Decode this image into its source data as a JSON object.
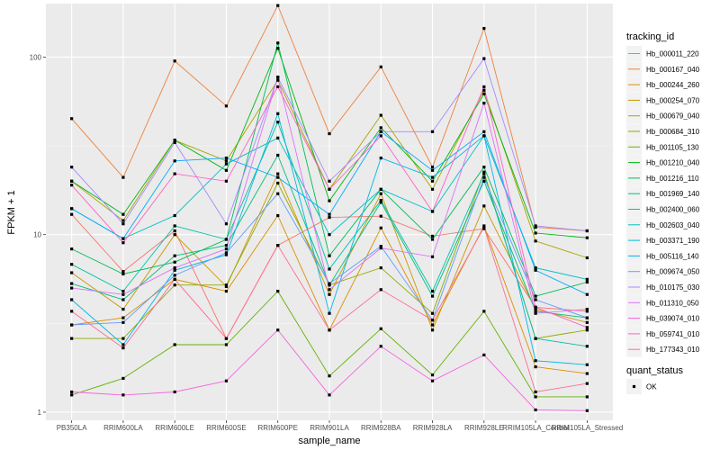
{
  "chart_data": {
    "type": "line",
    "xlabel": "sample_name",
    "ylabel": "FPKM + 1",
    "y_scale": "log10",
    "ylim": [
      0.9,
      200
    ],
    "y_ticks": [
      1,
      10,
      100
    ],
    "y_tick_labels": [
      "1",
      "10",
      "100"
    ],
    "grid": true,
    "legend_position": "right",
    "categories": [
      "PB350LA",
      "RRIM600LA",
      "RRIM600LE",
      "RRIM600SE",
      "RRIM600PE",
      "RRIM901LA",
      "RRIM928BA",
      "RRIM928LA",
      "RRIM928LE",
      "RRIM105LA_Control",
      "RRIM105LA_Stressed"
    ],
    "series": [
      {
        "name": "Hb_000011_220",
        "color": "#F8766D",
        "values": [
          13,
          6.2,
          10.5,
          2.6,
          8.7,
          12.5,
          12.7,
          9.8,
          10.8,
          3.9,
          3.7
        ]
      },
      {
        "name": "Hb_000167_040",
        "color": "#EC823C",
        "values": [
          45,
          21,
          95,
          53,
          195,
          37,
          88,
          24,
          145,
          11,
          10.5
        ]
      },
      {
        "name": "Hb_000244_260",
        "color": "#DB8E00",
        "values": [
          3.1,
          3.4,
          5.6,
          4.8,
          12.8,
          2.9,
          10.9,
          3.1,
          11.2,
          1.8,
          1.65
        ]
      },
      {
        "name": "Hb_000254_070",
        "color": "#C79800",
        "values": [
          6.1,
          3.8,
          10,
          5.1,
          22,
          4.6,
          17,
          2.9,
          14.5,
          3.8,
          3.2
        ]
      },
      {
        "name": "Hb_000679_040",
        "color": "#AEA200",
        "values": [
          20,
          12,
          34,
          26,
          74,
          18,
          47,
          18,
          65,
          9.2,
          7.4
        ]
      },
      {
        "name": "Hb_000684_310",
        "color": "#8FAA00",
        "values": [
          2.6,
          2.6,
          5.2,
          5.2,
          19.5,
          5.2,
          6.5,
          3.6,
          22.5,
          2.6,
          2.9
        ]
      },
      {
        "name": "Hb_001105_130",
        "color": "#64B200",
        "values": [
          1.25,
          1.55,
          2.4,
          2.4,
          4.8,
          1.6,
          2.95,
          1.62,
          3.7,
          1.22,
          1.22
        ]
      },
      {
        "name": "Hb_001210_040",
        "color": "#00B712",
        "values": [
          20,
          13,
          34,
          23,
          112,
          15.5,
          40,
          20,
          62,
          10.2,
          9.6
        ]
      },
      {
        "name": "Hb_001216_110",
        "color": "#00BC56",
        "values": [
          8.3,
          6.0,
          7.0,
          9.4,
          120,
          7.6,
          18,
          9.4,
          24,
          4.5,
          5.4
        ]
      },
      {
        "name": "Hb_001969_140",
        "color": "#00BF7D",
        "values": [
          5.3,
          4.3,
          7.6,
          8.7,
          28,
          5.2,
          15.2,
          4.5,
          20,
          3.7,
          3.4
        ]
      },
      {
        "name": "Hb_002400_060",
        "color": "#00C1A3",
        "values": [
          6.8,
          4.8,
          11.2,
          9.4,
          43,
          6.4,
          15.6,
          4.8,
          22,
          2.6,
          2.35
        ]
      },
      {
        "name": "Hb_002603_040",
        "color": "#00BFC4",
        "values": [
          14,
          9.5,
          12.8,
          25,
          35,
          10,
          18,
          13.5,
          36,
          6.5,
          5.6
        ]
      },
      {
        "name": "Hb_003371_190",
        "color": "#00B8E5",
        "values": [
          4.3,
          2.4,
          6.3,
          7.7,
          48,
          3.6,
          27,
          21,
          36,
          1.95,
          1.85
        ]
      },
      {
        "name": "Hb_005116_140",
        "color": "#00ABFD",
        "values": [
          14,
          9.5,
          26,
          27,
          21,
          13,
          38,
          23,
          38,
          6.3,
          4.6
        ]
      },
      {
        "name": "Hb_009674_050",
        "color": "#619CFF",
        "values": [
          3.1,
          3.2,
          5.9,
          7.9,
          17,
          5.3,
          8.6,
          3.3,
          21,
          4.3,
          3.4
        ]
      },
      {
        "name": "Hb_010175_030",
        "color": "#A58AFF",
        "values": [
          24,
          11.5,
          33,
          11.5,
          77,
          20,
          38,
          38,
          98,
          11.2,
          10.5
        ]
      },
      {
        "name": "Hb_011310_050",
        "color": "#DB72FB",
        "values": [
          5.0,
          4.6,
          6.5,
          8.3,
          77,
          4.9,
          8.4,
          7.5,
          55,
          3.6,
          3.8
        ]
      },
      {
        "name": "Hb_039074_010",
        "color": "#F664DF",
        "values": [
          1.3,
          1.25,
          1.3,
          1.5,
          2.9,
          1.25,
          2.35,
          1.5,
          2.1,
          1.03,
          1.02
        ]
      },
      {
        "name": "Hb_059741_010",
        "color": "#FF61C3",
        "values": [
          19,
          9.0,
          22,
          20,
          68,
          18,
          36,
          13.5,
          68,
          3.9,
          3.0
        ]
      },
      {
        "name": "Hb_177343_010",
        "color": "#FF6C91",
        "values": [
          3.7,
          2.3,
          5.6,
          2.6,
          8.7,
          2.9,
          4.9,
          3.3,
          11,
          1.3,
          1.45
        ]
      }
    ]
  },
  "legend": {
    "title": "tracking_id",
    "shape_title": "quant_status",
    "shape_items": [
      "OK"
    ]
  }
}
